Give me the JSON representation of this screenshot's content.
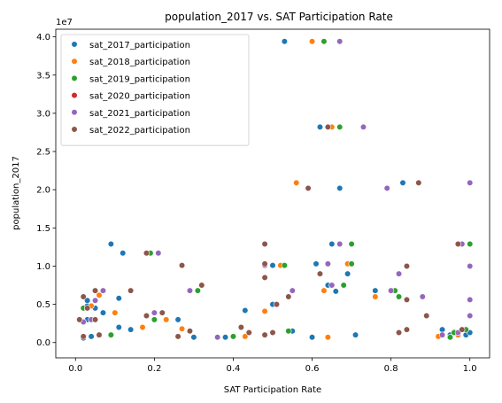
{
  "chart_data": {
    "type": "scatter",
    "title": "population_2017 vs. SAT Participation Rate",
    "xlabel": "SAT Participation Rate",
    "ylabel": "population_2017",
    "y_offset_label": "1e7",
    "xlim": [
      -0.05,
      1.05
    ],
    "ylim": [
      -0.2,
      4.1
    ],
    "y_scale_note": "y values in units of 1e7",
    "x_ticks": [
      "0.0",
      "0.2",
      "0.4",
      "0.6",
      "0.8",
      "1.0"
    ],
    "x_tick_values": [
      0.0,
      0.2,
      0.4,
      0.6,
      0.8,
      1.0
    ],
    "y_ticks": [
      "0.0",
      "0.5",
      "1.0",
      "1.5",
      "2.0",
      "2.5",
      "3.0",
      "3.5",
      "4.0"
    ],
    "y_tick_values": [
      0.0,
      0.5,
      1.0,
      1.5,
      2.0,
      2.5,
      3.0,
      3.5,
      4.0
    ],
    "grid": false,
    "legend_position": "top-left",
    "series": [
      {
        "name": "sat_2017_participation",
        "color": "#1f77b4",
        "points": [
          [
            0.53,
            3.94
          ],
          [
            0.62,
            2.82
          ],
          [
            0.83,
            2.09
          ],
          [
            0.67,
            2.02
          ],
          [
            0.09,
            1.29
          ],
          [
            0.65,
            1.29
          ],
          [
            0.12,
            1.17
          ],
          [
            0.61,
            1.03
          ],
          [
            0.5,
            1.01
          ],
          [
            0.69,
            0.9
          ],
          [
            0.76,
            0.68
          ],
          [
            0.64,
            0.75
          ],
          [
            0.11,
            0.58
          ],
          [
            0.07,
            0.39
          ],
          [
            0.26,
            0.3
          ],
          [
            0.11,
            0.2
          ],
          [
            0.43,
            0.42
          ],
          [
            0.66,
            0.67
          ],
          [
            0.71,
            0.1
          ],
          [
            0.6,
            0.07
          ],
          [
            0.02,
            0.06
          ],
          [
            0.03,
            0.3
          ],
          [
            0.05,
            0.45
          ],
          [
            0.14,
            0.17
          ],
          [
            0.3,
            0.07
          ],
          [
            0.38,
            0.07
          ],
          [
            0.5,
            0.5
          ],
          [
            0.55,
            0.15
          ],
          [
            0.93,
            0.17
          ],
          [
            0.95,
            0.1
          ],
          [
            0.99,
            0.1
          ],
          [
            1.0,
            0.13
          ],
          [
            0.03,
            0.48
          ],
          [
            0.04,
            0.08
          ],
          [
            0.09,
            0.1
          ],
          [
            0.03,
            0.55
          ]
        ]
      },
      {
        "name": "sat_2018_participation",
        "color": "#ff7f0e",
        "points": [
          [
            0.6,
            3.94
          ],
          [
            0.56,
            2.09
          ],
          [
            0.65,
            2.82
          ],
          [
            0.69,
            1.03
          ],
          [
            0.76,
            0.6
          ],
          [
            0.63,
            0.68
          ],
          [
            0.48,
            0.41
          ],
          [
            0.43,
            0.08
          ],
          [
            0.23,
            0.3
          ],
          [
            0.27,
            0.18
          ],
          [
            0.17,
            0.2
          ],
          [
            0.1,
            0.39
          ],
          [
            0.04,
            0.48
          ],
          [
            0.02,
            0.27
          ],
          [
            0.97,
            0.1
          ],
          [
            0.92,
            0.08
          ],
          [
            0.99,
            0.17
          ],
          [
            0.96,
            0.14
          ],
          [
            0.64,
            0.07
          ],
          [
            0.06,
            0.62
          ],
          [
            0.52,
            1.01
          ]
        ]
      },
      {
        "name": "sat_2019_participation",
        "color": "#2ca02c",
        "points": [
          [
            0.63,
            3.94
          ],
          [
            0.67,
            2.82
          ],
          [
            0.19,
            1.17
          ],
          [
            1.0,
            1.29
          ],
          [
            0.7,
            1.29
          ],
          [
            0.53,
            1.01
          ],
          [
            0.7,
            1.03
          ],
          [
            0.82,
            0.6
          ],
          [
            0.81,
            0.68
          ],
          [
            0.31,
            0.68
          ],
          [
            0.2,
            0.3
          ],
          [
            0.09,
            0.1
          ],
          [
            0.4,
            0.08
          ],
          [
            0.54,
            0.15
          ],
          [
            0.68,
            0.75
          ],
          [
            0.95,
            0.07
          ],
          [
            0.96,
            0.13
          ],
          [
            0.99,
            0.17
          ],
          [
            0.02,
            0.45
          ]
        ]
      },
      {
        "name": "sat_2020_participation",
        "color": "#d62728",
        "points": []
      },
      {
        "name": "sat_2021_participation",
        "color": "#9467bd",
        "points": [
          [
            0.67,
            3.94
          ],
          [
            0.73,
            2.82
          ],
          [
            1.0,
            2.09
          ],
          [
            0.79,
            2.02
          ],
          [
            0.21,
            1.17
          ],
          [
            0.98,
            1.29
          ],
          [
            0.67,
            1.29
          ],
          [
            0.48,
            1.01
          ],
          [
            0.64,
            1.03
          ],
          [
            1.0,
            1.0
          ],
          [
            0.82,
            0.9
          ],
          [
            0.88,
            0.6
          ],
          [
            0.29,
            0.68
          ],
          [
            0.8,
            0.68
          ],
          [
            0.55,
            0.68
          ],
          [
            0.65,
            0.75
          ],
          [
            0.2,
            0.39
          ],
          [
            0.03,
            0.45
          ],
          [
            0.07,
            0.68
          ],
          [
            0.04,
            0.3
          ],
          [
            0.36,
            0.07
          ],
          [
            1.0,
            0.56
          ],
          [
            1.0,
            0.35
          ],
          [
            0.93,
            0.1
          ],
          [
            0.97,
            0.13
          ],
          [
            0.02,
            0.27
          ],
          [
            0.05,
            0.55
          ]
        ]
      },
      {
        "name": "sat_2022_participation",
        "color": "#8c564b",
        "points": [
          [
            0.64,
            2.82
          ],
          [
            0.87,
            2.09
          ],
          [
            0.59,
            2.02
          ],
          [
            0.48,
            1.29
          ],
          [
            0.97,
            1.29
          ],
          [
            0.18,
            1.17
          ],
          [
            0.27,
            1.01
          ],
          [
            0.48,
            1.03
          ],
          [
            0.84,
            1.0
          ],
          [
            0.62,
            0.9
          ],
          [
            0.48,
            0.85
          ],
          [
            0.32,
            0.75
          ],
          [
            0.14,
            0.68
          ],
          [
            0.05,
            0.68
          ],
          [
            0.54,
            0.6
          ],
          [
            0.84,
            0.56
          ],
          [
            0.22,
            0.39
          ],
          [
            0.18,
            0.35
          ],
          [
            0.02,
            0.6
          ],
          [
            0.01,
            0.3
          ],
          [
            0.05,
            0.3
          ],
          [
            0.42,
            0.2
          ],
          [
            0.48,
            0.1
          ],
          [
            0.29,
            0.15
          ],
          [
            0.06,
            0.1
          ],
          [
            0.82,
            0.13
          ],
          [
            0.84,
            0.17
          ],
          [
            0.89,
            0.35
          ],
          [
            0.98,
            0.17
          ],
          [
            0.02,
            0.08
          ],
          [
            0.03,
            0.45
          ],
          [
            0.44,
            0.13
          ],
          [
            0.51,
            0.5
          ],
          [
            0.5,
            0.13
          ],
          [
            0.26,
            0.08
          ]
        ]
      }
    ]
  }
}
